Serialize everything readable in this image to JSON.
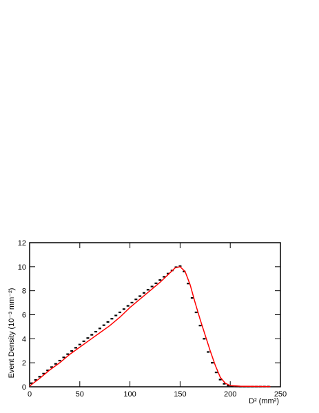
{
  "chart_data": {
    "type": "line",
    "xlabel": "D² (mm²)",
    "ylabel": "Event Density (10⁻³ mm⁻²)",
    "xlim": [
      0,
      250
    ],
    "xticks": [
      0,
      50,
      100,
      150,
      200,
      250
    ],
    "ylim": [
      0,
      12
    ],
    "yticks": [
      0,
      2,
      4,
      6,
      8,
      10,
      12
    ],
    "series": [
      {
        "type": "scatter",
        "color": "#000000",
        "x": [
          2,
          6,
          10,
          14,
          18,
          22,
          26,
          30,
          34,
          38,
          42,
          46,
          50,
          54,
          58,
          62,
          66,
          70,
          74,
          78,
          82,
          86,
          90,
          94,
          98,
          102,
          106,
          110,
          114,
          118,
          122,
          126,
          130,
          134,
          138,
          142,
          146,
          150,
          154,
          158,
          162,
          166,
          170,
          174,
          178,
          182,
          186,
          190,
          194,
          198,
          202,
          206,
          210,
          214,
          218,
          222,
          226,
          230,
          234,
          238
        ],
        "values": [
          0.3,
          0.57,
          0.84,
          1.1,
          1.37,
          1.64,
          1.91,
          2.18,
          2.45,
          2.72,
          2.98,
          3.25,
          3.52,
          3.79,
          4.06,
          4.33,
          4.59,
          4.86,
          5.13,
          5.4,
          5.67,
          5.94,
          6.2,
          6.47,
          6.74,
          7.01,
          7.28,
          7.55,
          7.82,
          8.08,
          8.35,
          8.62,
          8.89,
          9.16,
          9.43,
          9.69,
          9.96,
          10.05,
          9.6,
          8.6,
          7.4,
          6.2,
          5.1,
          4.0,
          2.9,
          2.0,
          1.2,
          0.6,
          0.25,
          0.1,
          0.05,
          0.03,
          0.02,
          0.02,
          0.02,
          0.02,
          0.02,
          0.02,
          0.02,
          0.02
        ]
      },
      {
        "type": "line",
        "color": "#ff0000",
        "x": [
          0,
          2,
          10,
          20,
          30,
          40,
          50,
          60,
          70,
          80,
          90,
          100,
          110,
          120,
          130,
          140,
          145,
          150,
          155,
          160,
          165,
          170,
          175,
          180,
          185,
          190,
          195,
          200,
          210,
          240
        ],
        "values": [
          0.05,
          0.2,
          0.7,
          1.4,
          2.0,
          2.7,
          3.3,
          3.9,
          4.5,
          5.1,
          5.8,
          6.6,
          7.3,
          8.0,
          8.7,
          9.5,
          9.9,
          10.0,
          9.6,
          8.5,
          7.0,
          5.6,
          4.3,
          3.0,
          1.8,
          0.8,
          0.3,
          0.1,
          0.05,
          0.02
        ]
      }
    ]
  }
}
